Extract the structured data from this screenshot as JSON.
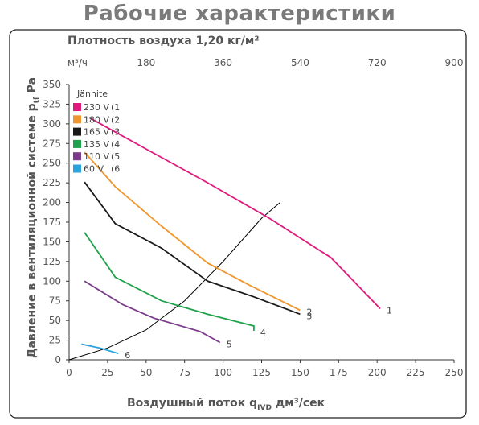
{
  "title": "Рабочие характеристики",
  "chart_data": {
    "type": "line",
    "density_label": "Плотность воздуха 1,20 кг/м²",
    "xlabel": "Воздушный поток q",
    "xlabel_sub": "IVD",
    "xlabel_unit": " дм³/сек",
    "ylabel": "Давление в вентиляционной системе p",
    "ylabel_sub": "tf",
    "ylabel_unit": " Pa",
    "xlim": [
      0,
      250
    ],
    "ylim": [
      0,
      350
    ],
    "x_ticks": [
      0,
      25,
      50,
      75,
      100,
      125,
      150,
      175,
      200,
      225,
      250
    ],
    "y_ticks": [
      0,
      25,
      50,
      75,
      100,
      125,
      150,
      175,
      200,
      225,
      250,
      275,
      300,
      325,
      350
    ],
    "top_axis": {
      "unit_label": "м³/ч",
      "ticks": [
        180,
        360,
        540,
        720,
        900
      ]
    },
    "legend_title": "Jännite",
    "legend_position": "top-left",
    "series": [
      {
        "name": "230 V",
        "code": "(1",
        "label": "1",
        "color": "#e0197d",
        "x": [
          13,
          50,
          90,
          130,
          170,
          202
        ],
        "y": [
          308,
          268,
          225,
          180,
          130,
          65
        ]
      },
      {
        "name": "180 V",
        "code": "(2",
        "label": "2",
        "color": "#f0962e",
        "x": [
          10,
          30,
          60,
          90,
          117,
          150
        ],
        "y": [
          264,
          220,
          170,
          123,
          95,
          63
        ]
      },
      {
        "name": "165 V",
        "code": "(3",
        "label": "3",
        "color": "#1a1a1a",
        "x": [
          10,
          30,
          60,
          90,
          120,
          150
        ],
        "y": [
          226,
          173,
          142,
          100,
          80,
          58
        ]
      },
      {
        "name": "135 V",
        "code": "(4",
        "label": "4",
        "color": "#1fa24a",
        "x": [
          10,
          30,
          60,
          90,
          120,
          120
        ],
        "y": [
          162,
          105,
          75,
          58,
          43,
          37
        ]
      },
      {
        "name": "110 V",
        "code": "(5",
        "label": "5",
        "color": "#7c3a8c",
        "x": [
          10,
          35,
          55,
          85,
          98
        ],
        "y": [
          100,
          70,
          53,
          36,
          22
        ]
      },
      {
        "name": "60 V",
        "code": "(6",
        "label": "6",
        "color": "#29a3dd",
        "x": [
          8,
          20,
          32
        ],
        "y": [
          20,
          15,
          8
        ]
      }
    ],
    "system_curve": {
      "color": "#000000",
      "x": [
        0,
        25,
        50,
        75,
        100,
        125,
        137
      ],
      "y": [
        0,
        15,
        38,
        75,
        125,
        180,
        200
      ]
    }
  }
}
